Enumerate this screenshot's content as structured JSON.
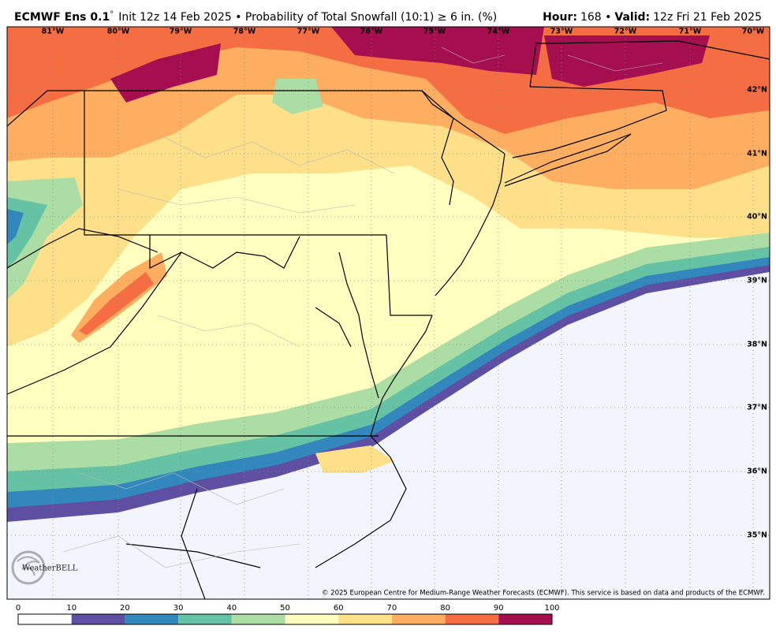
{
  "header": {
    "product": "ECMWF Ens 0.1",
    "degree": "°",
    "description": "Init 12z 14 Feb 2025 • Probability of Total Snowfall (10:1) ≥ 6 in. (%)",
    "hour_label": "Hour:",
    "hour": "168 •",
    "valid_label": "Valid:",
    "valid": "12z Fri 21 Feb 2025"
  },
  "longitudes": [
    "81°W",
    "80°W",
    "79°W",
    "78°W",
    "77°W",
    "76°W",
    "75°W",
    "74°W",
    "73°W",
    "72°W",
    "71°W",
    "70°W"
  ],
  "latitudes": [
    "42°N",
    "41°N",
    "40°N",
    "39°N",
    "38°N",
    "37°N",
    "36°N",
    "35°N"
  ],
  "copyright": "© 2025 European Centre for Medium-Range Weather Forecasts (ECMWF). This service is based on data and products of the ECMWF.",
  "logo": "WeatherBELL",
  "colorbar": {
    "ticks": [
      0,
      10,
      20,
      30,
      40,
      50,
      60,
      70,
      80,
      90,
      100
    ],
    "colors": [
      "#ffffff",
      "#5e4fa2",
      "#3288bd",
      "#66c2a5",
      "#abdda4",
      "#ffffbf",
      "#fee08b",
      "#fdae61",
      "#f46d43",
      "#a50f4f"
    ]
  }
}
